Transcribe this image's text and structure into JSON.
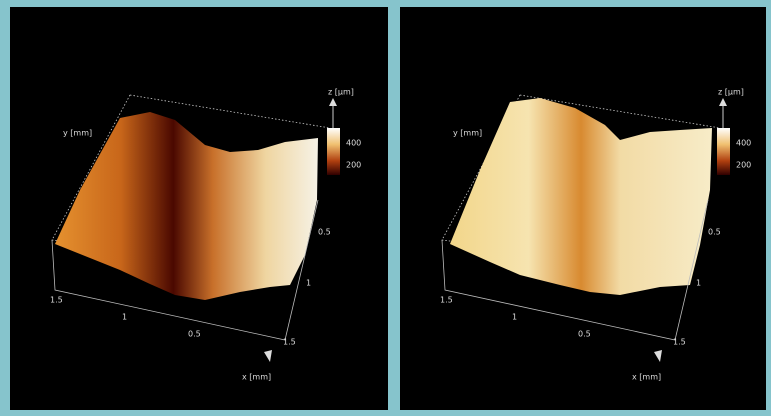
{
  "panels": [
    {
      "z_label": "z [µm]",
      "colorbar_ticks": [
        400,
        200
      ],
      "side_label": "y [mm]",
      "right_axis_ticks": [
        0.5,
        1,
        1.5
      ],
      "front_axis_ticks": [
        1.5,
        1,
        0.5
      ],
      "x_label": "x [mm]"
    },
    {
      "z_label": "z [µm]",
      "colorbar_ticks": [
        400,
        200
      ],
      "side_label": "y [mm]",
      "right_axis_ticks": [
        0.5,
        1,
        1.5
      ],
      "front_axis_ticks": [
        1.5,
        1,
        0.5
      ],
      "x_label": "x [mm]"
    }
  ]
}
